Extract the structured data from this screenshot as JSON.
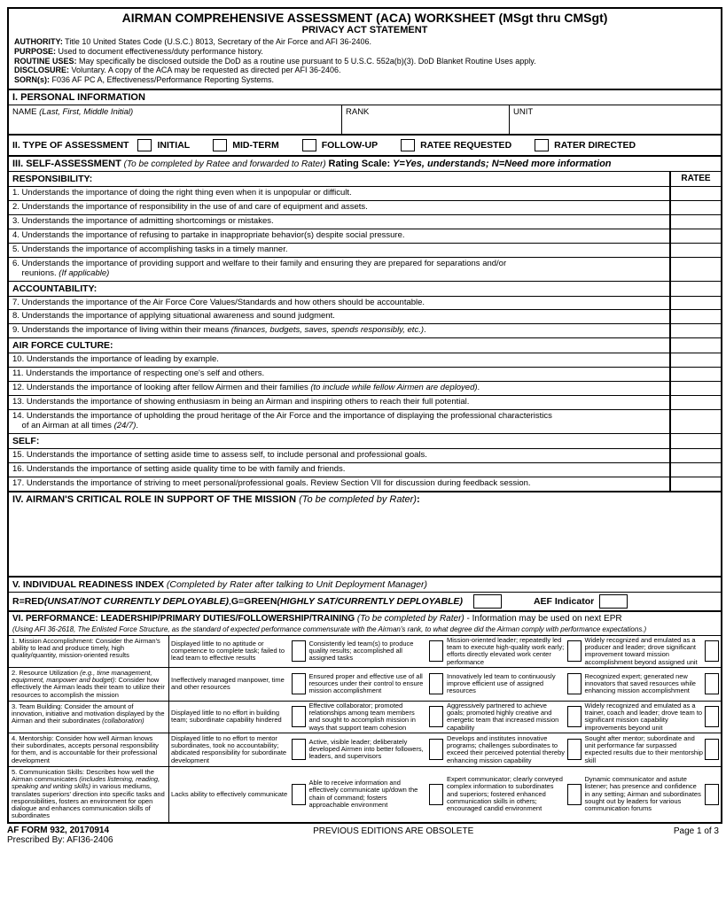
{
  "title": "AIRMAN COMPREHENSIVE ASSESSMENT (ACA) WORKSHEET (MSgt thru CMSgt)",
  "privTitle": "PRIVACY ACT STATEMENT",
  "priv": {
    "auth": "Title 10 United States Code (U.S.C.) 8013, Secretary of the Air Force and AFI 36-2406.",
    "purp": "Used to document effectiveness/duty performance history.",
    "rout": "May specifically be disclosed outside the DoD as a routine use pursuant to 5 U.S.C. 552a(b)(3). DoD Blanket Routine Uses apply.",
    "disc": "Voluntary.  A copy of the ACA may be requested as directed per AFI 36-2406.",
    "sorn": "F036 AF PC A, Effectiveness/Performance Reporting Systems."
  },
  "s1": "I. PERSONAL INFORMATION",
  "nameL": "NAME",
  "nameI": "(Last, First, Middle Initial)",
  "rankL": "RANK",
  "unitL": "UNIT",
  "s2": "II. TYPE OF ASSESSMENT",
  "t": {
    "a": "INITIAL",
    "b": "MID-TERM",
    "c": "FOLLOW-UP",
    "d": "RATEE REQUESTED",
    "e": "RATER DIRECTED"
  },
  "s3": "III. SELF-ASSESSMENT",
  "s3i": "(To be completed by Ratee and forwarded to Rater)",
  "s3r": "Rating Scale:",
  "s3y": "Y=Yes, understands; N=Need more information",
  "ratee": "RATEE",
  "c1": "RESPONSIBILITY:",
  "q1": "1. Understands the importance of doing the right thing even when it is unpopular or difficult.",
  "q2": "2. Understands the importance of responsibility in the use of and care of equipment and assets.",
  "q3": "3. Understands the importance of admitting shortcomings or mistakes.",
  "q4": "4. Understands the importance of refusing to partake in inappropriate behavior(s) despite social pressure.",
  "q5": "5. Understands the importance of accomplishing tasks in a timely manner.",
  "q6a": "6. Understands the importance of providing support and welfare to their family and ensuring they are prepared for separations and/or",
  "q6b": "reunions.",
  "q6c": "(If applicable)",
  "c2": "ACCOUNTABILITY:",
  "q7": "7. Understands the importance of the Air Force Core Values/Standards and how others should be accountable.",
  "q8": "8. Understands the importance of applying situational awareness and sound judgment.",
  "q9a": "9. Understands the importance of living within their means",
  "q9b": "(finances, budgets, saves, spends responsibly, etc.)",
  "c3": "AIR FORCE CULTURE:",
  "q10": "10. Understands the importance of leading by example.",
  "q11": "11. Understands the importance of respecting one's self and others.",
  "q12a": "12. Understands the importance of looking after fellow Airmen and their families",
  "q12b": "(to include while fellow Airmen are deployed)",
  "q13": "13. Understands the importance of showing enthusiasm in being an Airman and inspiring others to reach their full potential.",
  "q14a": "14. Understands the importance of upholding the proud heritage of the Air Force and the importance of displaying the professional characteristics",
  "q14b": "of an Airman at all times",
  "q14c": "(24/7)",
  "c4": "SELF:",
  "q15": "15. Understands the importance of setting aside time to assess self, to include personal and professional goals.",
  "q16": "16. Understands the importance of setting aside quality time to be with family and friends.",
  "q17": "17. Understands the importance of striving to meet personal/professional goals. Review Section VII for discussion during feedback session.",
  "s4": "IV. AIRMAN'S CRITICAL ROLE IN SUPPORT OF THE MISSION",
  "s4i": "(To be completed by Rater)",
  "s5": "V. INDIVIDUAL READINESS INDEX",
  "s5i": "(Completed by Rater after talking to Unit Deployment Manager)",
  "s5r": "R=RED",
  "s5ri": "(UNSAT/NOT CURRENTLY DEPLOYABLE)",
  "s5g": "G=GREEN",
  "s5gi": "(HIGHLY SAT/CURRENTLY DEPLOYABLE)",
  "aef": "AEF Indicator",
  "s6": "VI. PERFORMANCE: LEADERSHIP/PRIMARY DUTIES/FOLLOWERSHIP/TRAINING",
  "s6i": "(To be completed by Rater)",
  "s6n": " - Information may be used on next EPR",
  "s6sub": "(Using AFI 36-2618, The Enlisted Force Structure, as the standard of expected performance commensurate with the Airman's rank, to what degree did the Airman comply with performance expectations.)",
  "p": [
    {
      "l": "1. Mission Accomplishment: Consider the Airman's ability to lead and produce timely, high quality/quantity, mission-oriented results",
      "c": [
        "Displayed little to no aptitude or competence to complete task; failed to lead team to effective results",
        "Consistently led team(s) to produce quality results; accomplished all assigned tasks",
        "Mission-oriented leader; repeatedly led team to execute high-quality work early; efforts directly elevated work center performance",
        "Widely recognized and emulated as a producer and leader; drove significant improvement toward mission accomplishment beyond assigned unit"
      ]
    },
    {
      "l": "2. Resource Utilization <i>(e.g., time management, equipment, manpower and budget)</i>: Consider how effectively the Airman leads their team to utilize their resources to accomplish the mission",
      "c": [
        "Ineffectively managed manpower, time and other resources",
        "Ensured proper and effective use of all resources under their control to ensure mission accomplishment",
        "Innovatively led team to continuously improve efficient use of assigned resources",
        "Recognized expert; generated new innovators that saved resources while enhancing mission accomplishment"
      ]
    },
    {
      "l": "3. Team Building: Consider the amount of innovation, initiative and motivation displayed by the Airman and their subordinates <i>(collaboration)</i>",
      "c": [
        "Displayed little to no effort in building team; subordinate capability hindered",
        "Effective collaborator; promoted relationships among team members and sought to accomplish mission in ways that support team cohesion",
        "Aggressively partnered to achieve goals; promoted highly creative and energetic team that increased mission capability",
        "Widely recognized and emulated as a trainer, coach and leader; drove team to significant mission capability improvements beyond unit"
      ]
    },
    {
      "l": "4. Mentorship: Consider how well Airman knows their subordinates, accepts personal responsibility for them, and is accountable for their professional development",
      "c": [
        "Displayed little to no effort to mentor subordinates, took no accountability; abdicated responsibility for subordinate  development",
        "Active, visible leader; deliberately developed Airmen into better followers, leaders, and supervisors",
        "Develops and institutes innovative programs; challenges subordinates to exceed their perceived potential thereby enhancing mission capability",
        "Sought after mentor; subordinate and unit performance far surpassed expected results due to their mentorship skill"
      ]
    },
    {
      "l": "5. Communication Skills: Describes how well the Airman communicates <i>(includes listening, reading, speaking and writing skills)</i> in various mediums, translates superiors' direction into specific tasks and responsibilities, fosters an environment for open dialogue and enhances communication skills of subordinates",
      "c": [
        "Lacks ability to effectively communicate",
        "Able to receive information and effectively communicate up/down the chain of command; fosters approachable environment",
        "Expert communicator; clearly conveyed complex information to subordinates and superiors; fostered enhanced communication skills in others; encouraged candid environment",
        "Dynamic communicator and astute listener; has presence and confidence in any setting; Airman and subordinates sought out by leaders for various communication forums"
      ]
    }
  ],
  "fL": "AF FORM 932, 20170914",
  "fC": "PREVIOUS EDITIONS ARE OBSOLETE",
  "fR": "Page 1 of 3",
  "fP": "Prescribed By: AFI36-2406"
}
